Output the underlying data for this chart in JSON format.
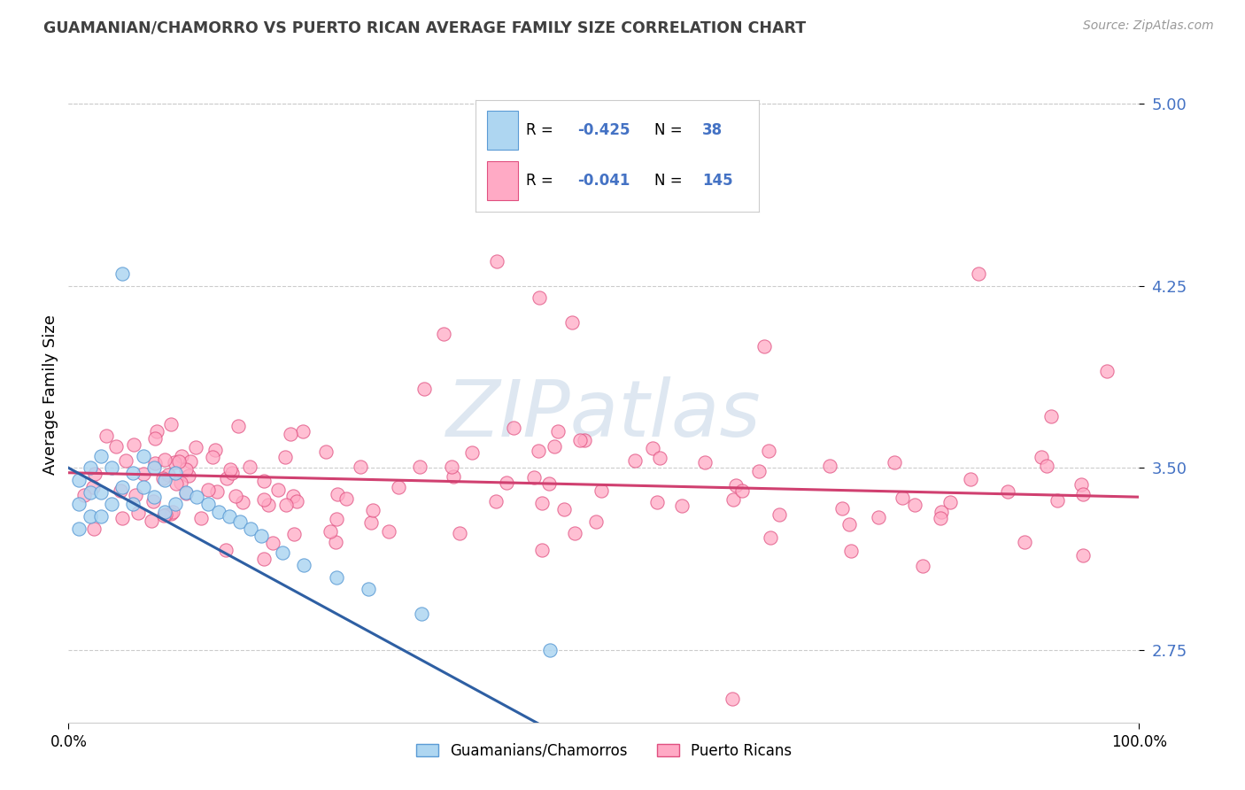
{
  "title": "GUAMANIAN/CHAMORRO VS PUERTO RICAN AVERAGE FAMILY SIZE CORRELATION CHART",
  "source": "Source: ZipAtlas.com",
  "ylabel": "Average Family Size",
  "xlim": [
    0,
    100
  ],
  "ylim": [
    2.45,
    5.15
  ],
  "yticks": [
    2.75,
    3.5,
    4.25,
    5.0
  ],
  "blue_R": -0.425,
  "blue_N": 38,
  "pink_R": -0.041,
  "pink_N": 145,
  "blue_scatter_color": "#AED6F1",
  "blue_edge_color": "#5B9BD5",
  "pink_scatter_color": "#FFAAC5",
  "pink_edge_color": "#E05080",
  "blue_line_color": "#2E5FA3",
  "pink_line_color": "#D04070",
  "watermark": "ZIPatlas",
  "watermark_color": "#C8D8E8",
  "grid_color": "#CCCCCC",
  "ytick_color": "#4472C4",
  "title_color": "#404040",
  "source_color": "#999999"
}
